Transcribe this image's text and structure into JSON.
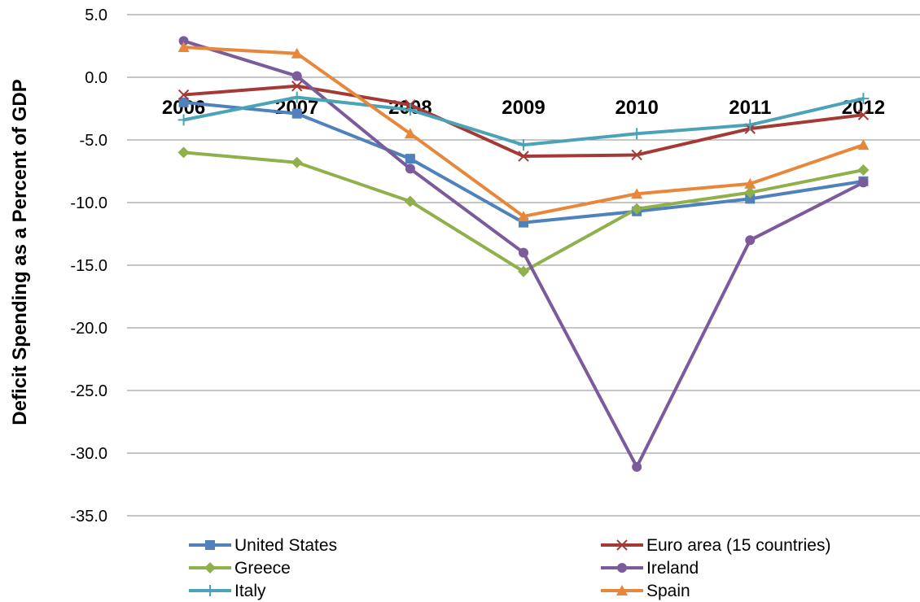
{
  "chart_data": {
    "type": "line",
    "title": "",
    "xlabel": "",
    "ylabel": "Deficit Spending as a Percent of GDP",
    "ylim": [
      -35,
      5
    ],
    "ytick_step": 5,
    "ytick_labels": [
      "5.0",
      "0.0",
      "-5.0",
      "-10.0",
      "-15.0",
      "-20.0",
      "-25.0",
      "-30.0",
      "-35.0"
    ],
    "grid": true,
    "legend_position": "bottom",
    "categories": [
      "2006",
      "2007",
      "2008",
      "2009",
      "2010",
      "2011",
      "2012"
    ],
    "series": [
      {
        "name": "United States",
        "color": "#4F81BD",
        "marker": "square",
        "values": [
          -2.0,
          -2.9,
          -6.5,
          -11.6,
          -10.7,
          -9.7,
          -8.3
        ]
      },
      {
        "name": "Euro area (15 countries)",
        "color": "#A33A36",
        "marker": "x",
        "values": [
          -1.4,
          -0.7,
          -2.2,
          -6.3,
          -6.2,
          -4.1,
          -3.0
        ]
      },
      {
        "name": "Greece",
        "color": "#8FB04A",
        "marker": "diamond",
        "values": [
          -6.0,
          -6.8,
          -9.9,
          -15.5,
          -10.5,
          -9.2,
          -7.4
        ]
      },
      {
        "name": "Ireland",
        "color": "#7A5B9B",
        "marker": "circle",
        "values": [
          2.9,
          0.1,
          -7.3,
          -14.0,
          -31.1,
          -13.0,
          -8.4
        ]
      },
      {
        "name": "Italy",
        "color": "#4BA3B7",
        "marker": "plus",
        "values": [
          -3.4,
          -1.6,
          -2.6,
          -5.4,
          -4.5,
          -3.8,
          -1.7
        ]
      },
      {
        "name": "Spain",
        "color": "#E8873A",
        "marker": "triangle",
        "values": [
          2.4,
          1.9,
          -4.5,
          -11.1,
          -9.3,
          -8.5,
          -5.4
        ]
      }
    ]
  }
}
